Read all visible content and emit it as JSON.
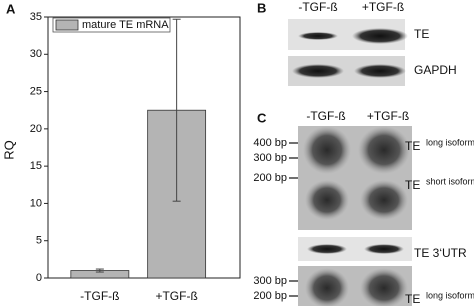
{
  "chart_data": {
    "type": "bar",
    "y_label": "RQ",
    "categories": [
      "-TGF-ß",
      "+TGF-ß"
    ],
    "series": [
      {
        "name": "mature TE mRNA",
        "color": "#b4b4b4",
        "values": [
          1.0,
          22.5
        ],
        "errors": [
          0.2,
          12.2
        ]
      }
    ],
    "ylim": [
      0,
      35
    ],
    "yticks": [
      0,
      5,
      10,
      15,
      20,
      25,
      30,
      35
    ],
    "legend": "upper left"
  },
  "panel_labels": [
    "A",
    "B",
    "C"
  ],
  "panel_b": {
    "columns": [
      "-TGF-ß",
      "+TGF-ß"
    ],
    "rows": [
      "TE",
      "GAPDH"
    ]
  },
  "panel_c": {
    "columns": [
      "-TGF-ß",
      "+TGF-ß"
    ],
    "markers_upper": [
      "400 bp",
      "300 bp",
      "200 bp"
    ],
    "markers_lower": [
      "300 bp",
      "200 bp"
    ],
    "labels": [
      {
        "name": "TE",
        "note": "long isoform"
      },
      {
        "name": "TE",
        "note": "short isoform"
      },
      {
        "name": "TE 3‘UTR"
      },
      {
        "name": "TE",
        "note": "long isoform"
      }
    ]
  }
}
